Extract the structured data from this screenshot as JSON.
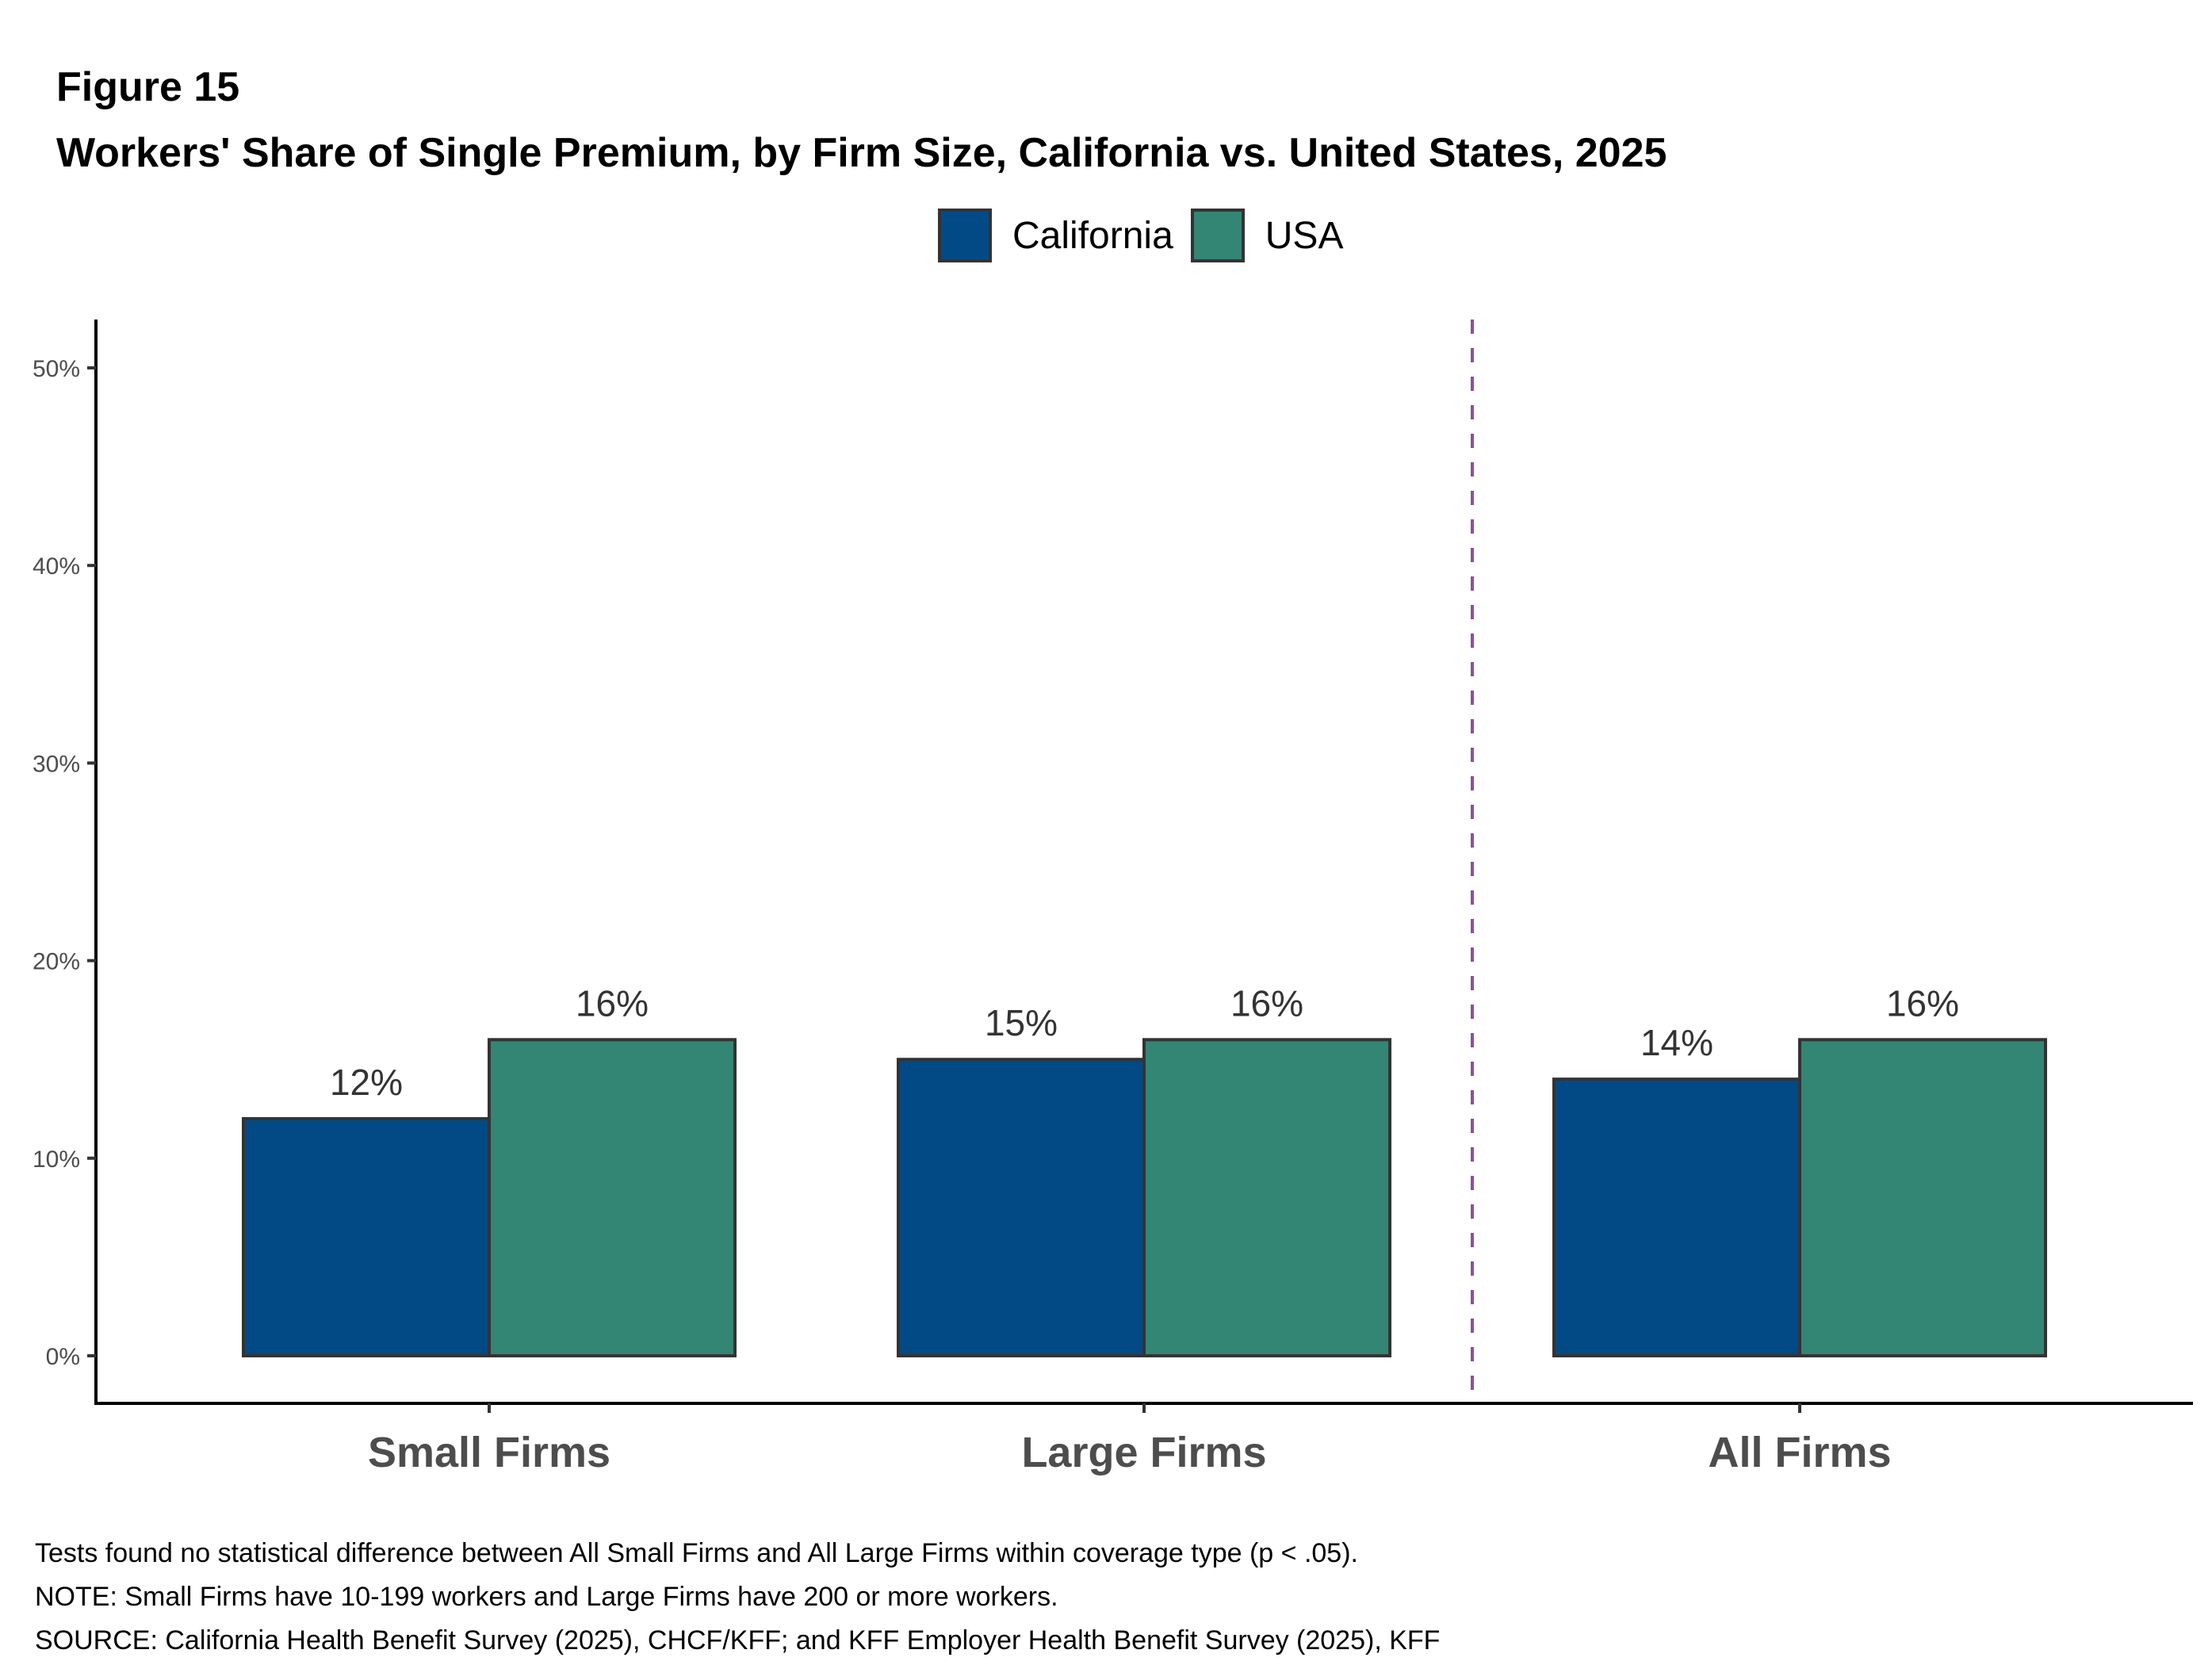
{
  "figure_label": "Figure 15",
  "title": "Workers' Share of Single Premium, by Firm Size, California vs. United States, 2025",
  "legend": [
    {
      "name": "California",
      "color": "#024A86"
    },
    {
      "name": "USA",
      "color": "#338673"
    }
  ],
  "chart_data": {
    "type": "bar",
    "title": "Workers' Share of Single Premium, by Firm Size, California vs. United States, 2025",
    "xlabel": "",
    "ylabel": "",
    "categories": [
      "Small Firms",
      "Large Firms",
      "All Firms"
    ],
    "series": [
      {
        "name": "California",
        "color": "#024A86",
        "values": [
          12,
          15,
          14
        ],
        "labels": [
          "12%",
          "15%",
          "14%"
        ]
      },
      {
        "name": "USA",
        "color": "#338673",
        "values": [
          16,
          16,
          16
        ],
        "labels": [
          "16%",
          "16%",
          "16%"
        ]
      }
    ],
    "ylim": [
      0,
      52
    ],
    "yticks": [
      0,
      10,
      20,
      30,
      40,
      50
    ],
    "ytick_labels": [
      "0%",
      "10%",
      "20%",
      "30%",
      "40%",
      "50%"
    ],
    "grid": false,
    "legend_position": "top-center",
    "annotations": [
      {
        "type": "vertical-dashed-line",
        "position": "between Large Firms and All Firms",
        "color": "#8E4E9E"
      }
    ]
  },
  "notes": [
    "Tests found no statistical difference between All Small Firms and All Large Firms within coverage type (p < .05).",
    "NOTE: Small Firms have 10-199 workers and Large Firms have 200 or more workers.",
    "SOURCE: California Health Benefit Survey (2025), CHCF/KFF; and KFF Employer Health Benefit Survey (2025), KFF"
  ]
}
